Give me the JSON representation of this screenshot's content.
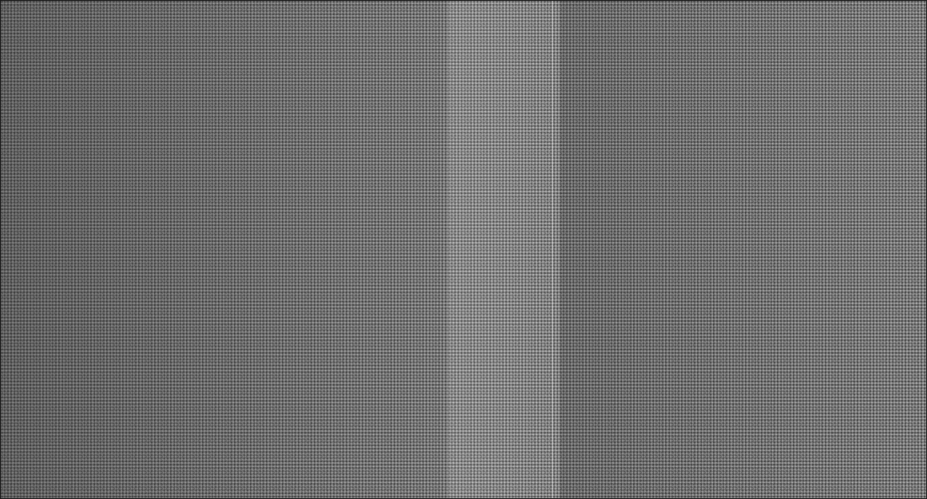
{
  "image": {
    "description_type": "scanned-halftone-gray-texture",
    "colors": {
      "base_gray": "#7a7a7a",
      "dark_speck": "#2b2b2b",
      "light_speck": "#d9d9d9",
      "border": "#1a1a1a"
    }
  }
}
